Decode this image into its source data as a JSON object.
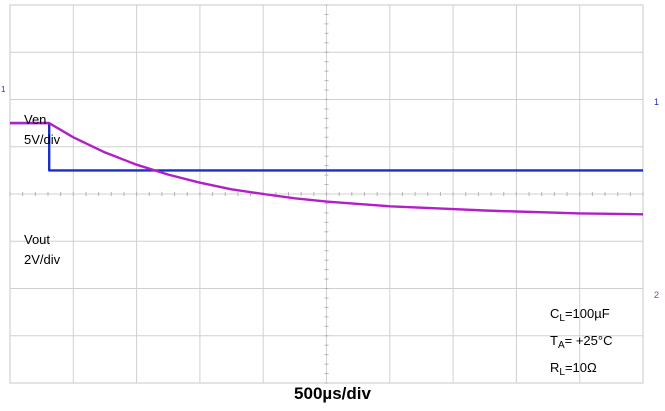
{
  "chart_data": {
    "type": "line",
    "title": "",
    "xlabel": "500µs/div",
    "time_per_div_us": 500,
    "grid": true,
    "grid_divisions": {
      "x": 10,
      "y": 8
    },
    "series": [
      {
        "name": "Ven",
        "scale_label": "5V/div",
        "scale_v_per_div": 5,
        "color": "#1a2ec8",
        "x_us": [
          0,
          310,
          310,
          5000
        ],
        "y_div": [
          1.5,
          1.5,
          0.5,
          0.5
        ]
      },
      {
        "name": "Vout",
        "scale_label": "2V/div",
        "scale_v_per_div": 2,
        "color": "#b21ec8",
        "x_us": [
          0,
          310,
          500,
          750,
          1000,
          1250,
          1500,
          1750,
          2000,
          2250,
          2500,
          2750,
          3000,
          3250,
          3500,
          3750,
          4000,
          4250,
          4500,
          4750,
          5000
        ],
        "y_div": [
          1.5,
          1.5,
          1.2,
          0.88,
          0.62,
          0.41,
          0.24,
          0.1,
          0.0,
          -0.09,
          -0.16,
          -0.21,
          -0.26,
          -0.29,
          -0.32,
          -0.35,
          -0.37,
          -0.39,
          -0.41,
          -0.42,
          -0.43
        ]
      }
    ],
    "annotations": [
      {
        "main": "C",
        "sub": "L",
        "rest": "=100µF"
      },
      {
        "main": "T",
        "sub": "A",
        "rest": "= +25°C"
      },
      {
        "main": "R",
        "sub": "L",
        "rest": "=10Ω"
      }
    ],
    "markers": {
      "ch1_left": "1",
      "ch1_right": "1",
      "ch2_right": "2"
    }
  }
}
